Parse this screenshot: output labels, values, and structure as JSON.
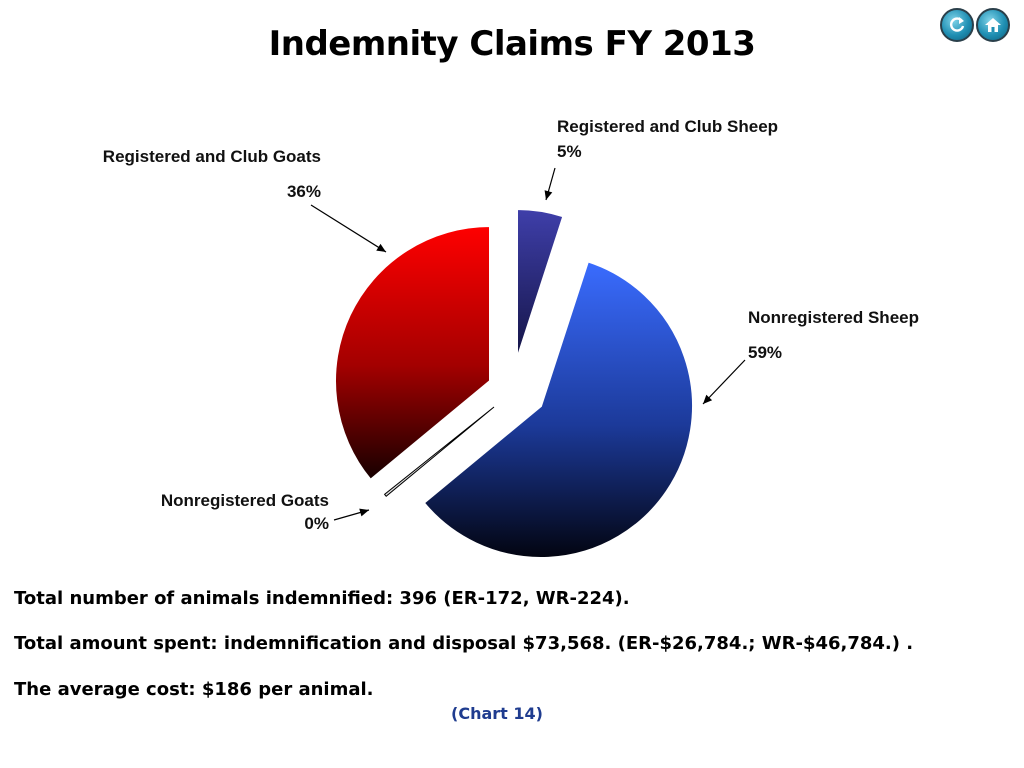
{
  "page": {
    "footer": {
      "line1": "Total number of animals indemnified: 396 (ER-172, WR-224).",
      "line2": "Total amount spent: indemnification and disposal $73,568. (ER-$26,784.; WR-$46,784.)  .",
      "line3": "The average cost: $186 per animal.",
      "chart_ref": "(Chart 14)"
    },
    "nav": {
      "refresh_icon": "refresh-icon",
      "home_icon": "home-icon"
    }
  },
  "chart_data": {
    "type": "pie",
    "title": "Indemnity Claims FY 2013",
    "slices": [
      {
        "label": "Registered and Club Sheep",
        "value": 5,
        "pct_label": "5%",
        "color": "#2a2a8a"
      },
      {
        "label": "Nonregistered Sheep",
        "value": 59,
        "pct_label": "59%",
        "color": "#3366ff"
      },
      {
        "label": "Nonregistered Goats",
        "value": 0,
        "pct_label": "0%",
        "color": "#ffffff"
      },
      {
        "label": "Registered and Club Goats",
        "value": 36,
        "pct_label": "36%",
        "color": "#ff0000"
      }
    ],
    "legend": "none",
    "exploded": true
  }
}
